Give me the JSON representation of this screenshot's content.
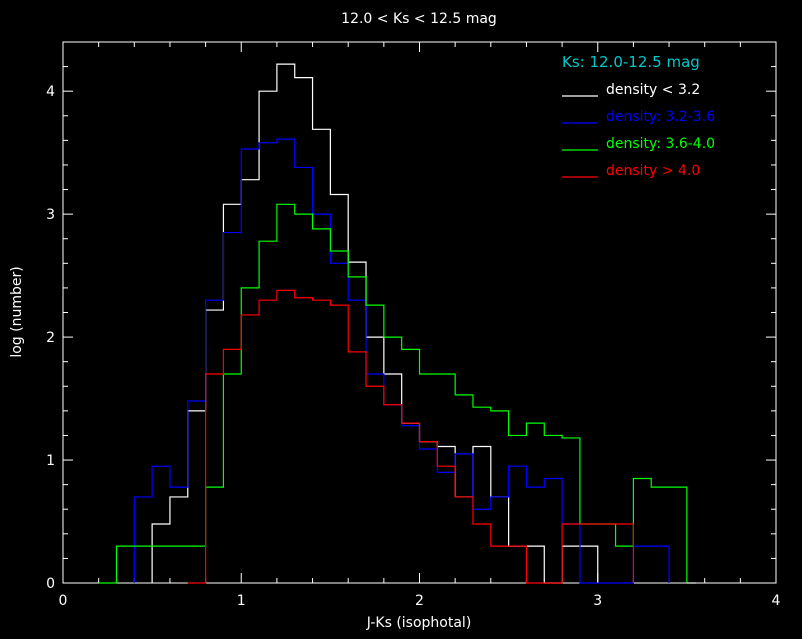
{
  "chart_data": {
    "type": "line",
    "title": "12.0 < Ks < 12.5 mag",
    "xlabel": "J-Ks (isophotal)",
    "ylabel": "log (number)",
    "xlim": [
      0,
      4
    ],
    "ylim": [
      0,
      4.4
    ],
    "xticks": [
      0,
      1,
      2,
      3,
      4
    ],
    "yticks": [
      0,
      1,
      2,
      3,
      4
    ],
    "grid": false,
    "step_style": "histogram",
    "legend": {
      "title": "Ks: 12.0-12.5 mag",
      "title_color": "#00c8c8",
      "placement": "top-right"
    },
    "series": [
      {
        "name": "density < 3.2",
        "color": "#ffffff",
        "bin_edges": [
          0.5,
          0.6,
          0.7,
          0.8,
          0.9,
          1.0,
          1.1,
          1.2,
          1.3,
          1.4,
          1.5,
          1.6,
          1.7,
          1.8,
          1.9,
          2.0,
          2.1,
          2.2,
          2.3,
          2.4,
          2.5,
          2.6,
          2.7,
          2.8,
          2.9,
          3.0
        ],
        "values": [
          0.48,
          0.7,
          1.4,
          2.22,
          3.08,
          3.28,
          4.0,
          4.22,
          4.11,
          3.69,
          3.16,
          2.61,
          2.0,
          1.7,
          1.3,
          1.15,
          1.11,
          0.7,
          1.11,
          0.7,
          0.3,
          0.3,
          0.0,
          0.3,
          0.3
        ]
      },
      {
        "name": "density: 3.2-3.6",
        "color": "#0000ff",
        "bin_edges": [
          0.4,
          0.5,
          0.6,
          0.7,
          0.8,
          0.9,
          1.0,
          1.1,
          1.2,
          1.3,
          1.4,
          1.5,
          1.6,
          1.7,
          1.8,
          1.9,
          2.0,
          2.1,
          2.2,
          2.3,
          2.4,
          2.5,
          2.6,
          2.7,
          2.8,
          2.9,
          3.0,
          3.1,
          3.2,
          3.3,
          3.4
        ],
        "values": [
          0.7,
          0.95,
          0.78,
          1.48,
          2.3,
          2.85,
          3.53,
          3.58,
          3.61,
          3.38,
          3.0,
          2.6,
          2.3,
          1.7,
          1.45,
          1.28,
          1.09,
          0.9,
          1.05,
          0.6,
          0.7,
          0.95,
          0.78,
          0.85,
          0.48,
          0.0,
          0.0,
          0.0,
          0.3,
          0.3
        ]
      },
      {
        "name": "density: 3.6-4.0",
        "color": "#00ff00",
        "bin_edges": [
          0.3,
          0.4,
          0.5,
          0.6,
          0.7,
          0.8,
          0.9,
          1.0,
          1.1,
          1.2,
          1.3,
          1.4,
          1.5,
          1.6,
          1.7,
          1.8,
          1.9,
          2.0,
          2.1,
          2.2,
          2.3,
          2.4,
          2.5,
          2.6,
          2.7,
          2.8,
          2.9,
          3.0,
          3.1,
          3.2,
          3.3,
          3.4,
          3.5
        ],
        "values": [
          0.3,
          0.3,
          0.3,
          0.3,
          0.3,
          0.78,
          1.7,
          2.4,
          2.78,
          3.08,
          3.0,
          2.88,
          2.7,
          2.49,
          2.26,
          2.0,
          1.9,
          1.7,
          1.7,
          1.53,
          1.43,
          1.4,
          1.2,
          1.3,
          1.2,
          1.18,
          0.48,
          0.48,
          0.3,
          0.85,
          0.78,
          0.78
        ]
      },
      {
        "name": "density > 4.0",
        "color": "#ff0000",
        "bin_edges": [
          0.7,
          0.8,
          0.9,
          1.0,
          1.1,
          1.2,
          1.3,
          1.4,
          1.5,
          1.6,
          1.7,
          1.8,
          1.9,
          2.0,
          2.1,
          2.2,
          2.3,
          2.4,
          2.5,
          2.6,
          2.7,
          2.8,
          2.9,
          3.0,
          3.1,
          3.2
        ],
        "values": [
          0.0,
          1.7,
          1.9,
          2.18,
          2.3,
          2.38,
          2.32,
          2.3,
          2.26,
          1.88,
          1.6,
          1.45,
          1.3,
          1.15,
          0.95,
          0.7,
          0.48,
          0.3,
          0.3,
          0.0,
          0.0,
          0.48,
          0.48,
          0.48,
          0.48
        ]
      }
    ]
  }
}
